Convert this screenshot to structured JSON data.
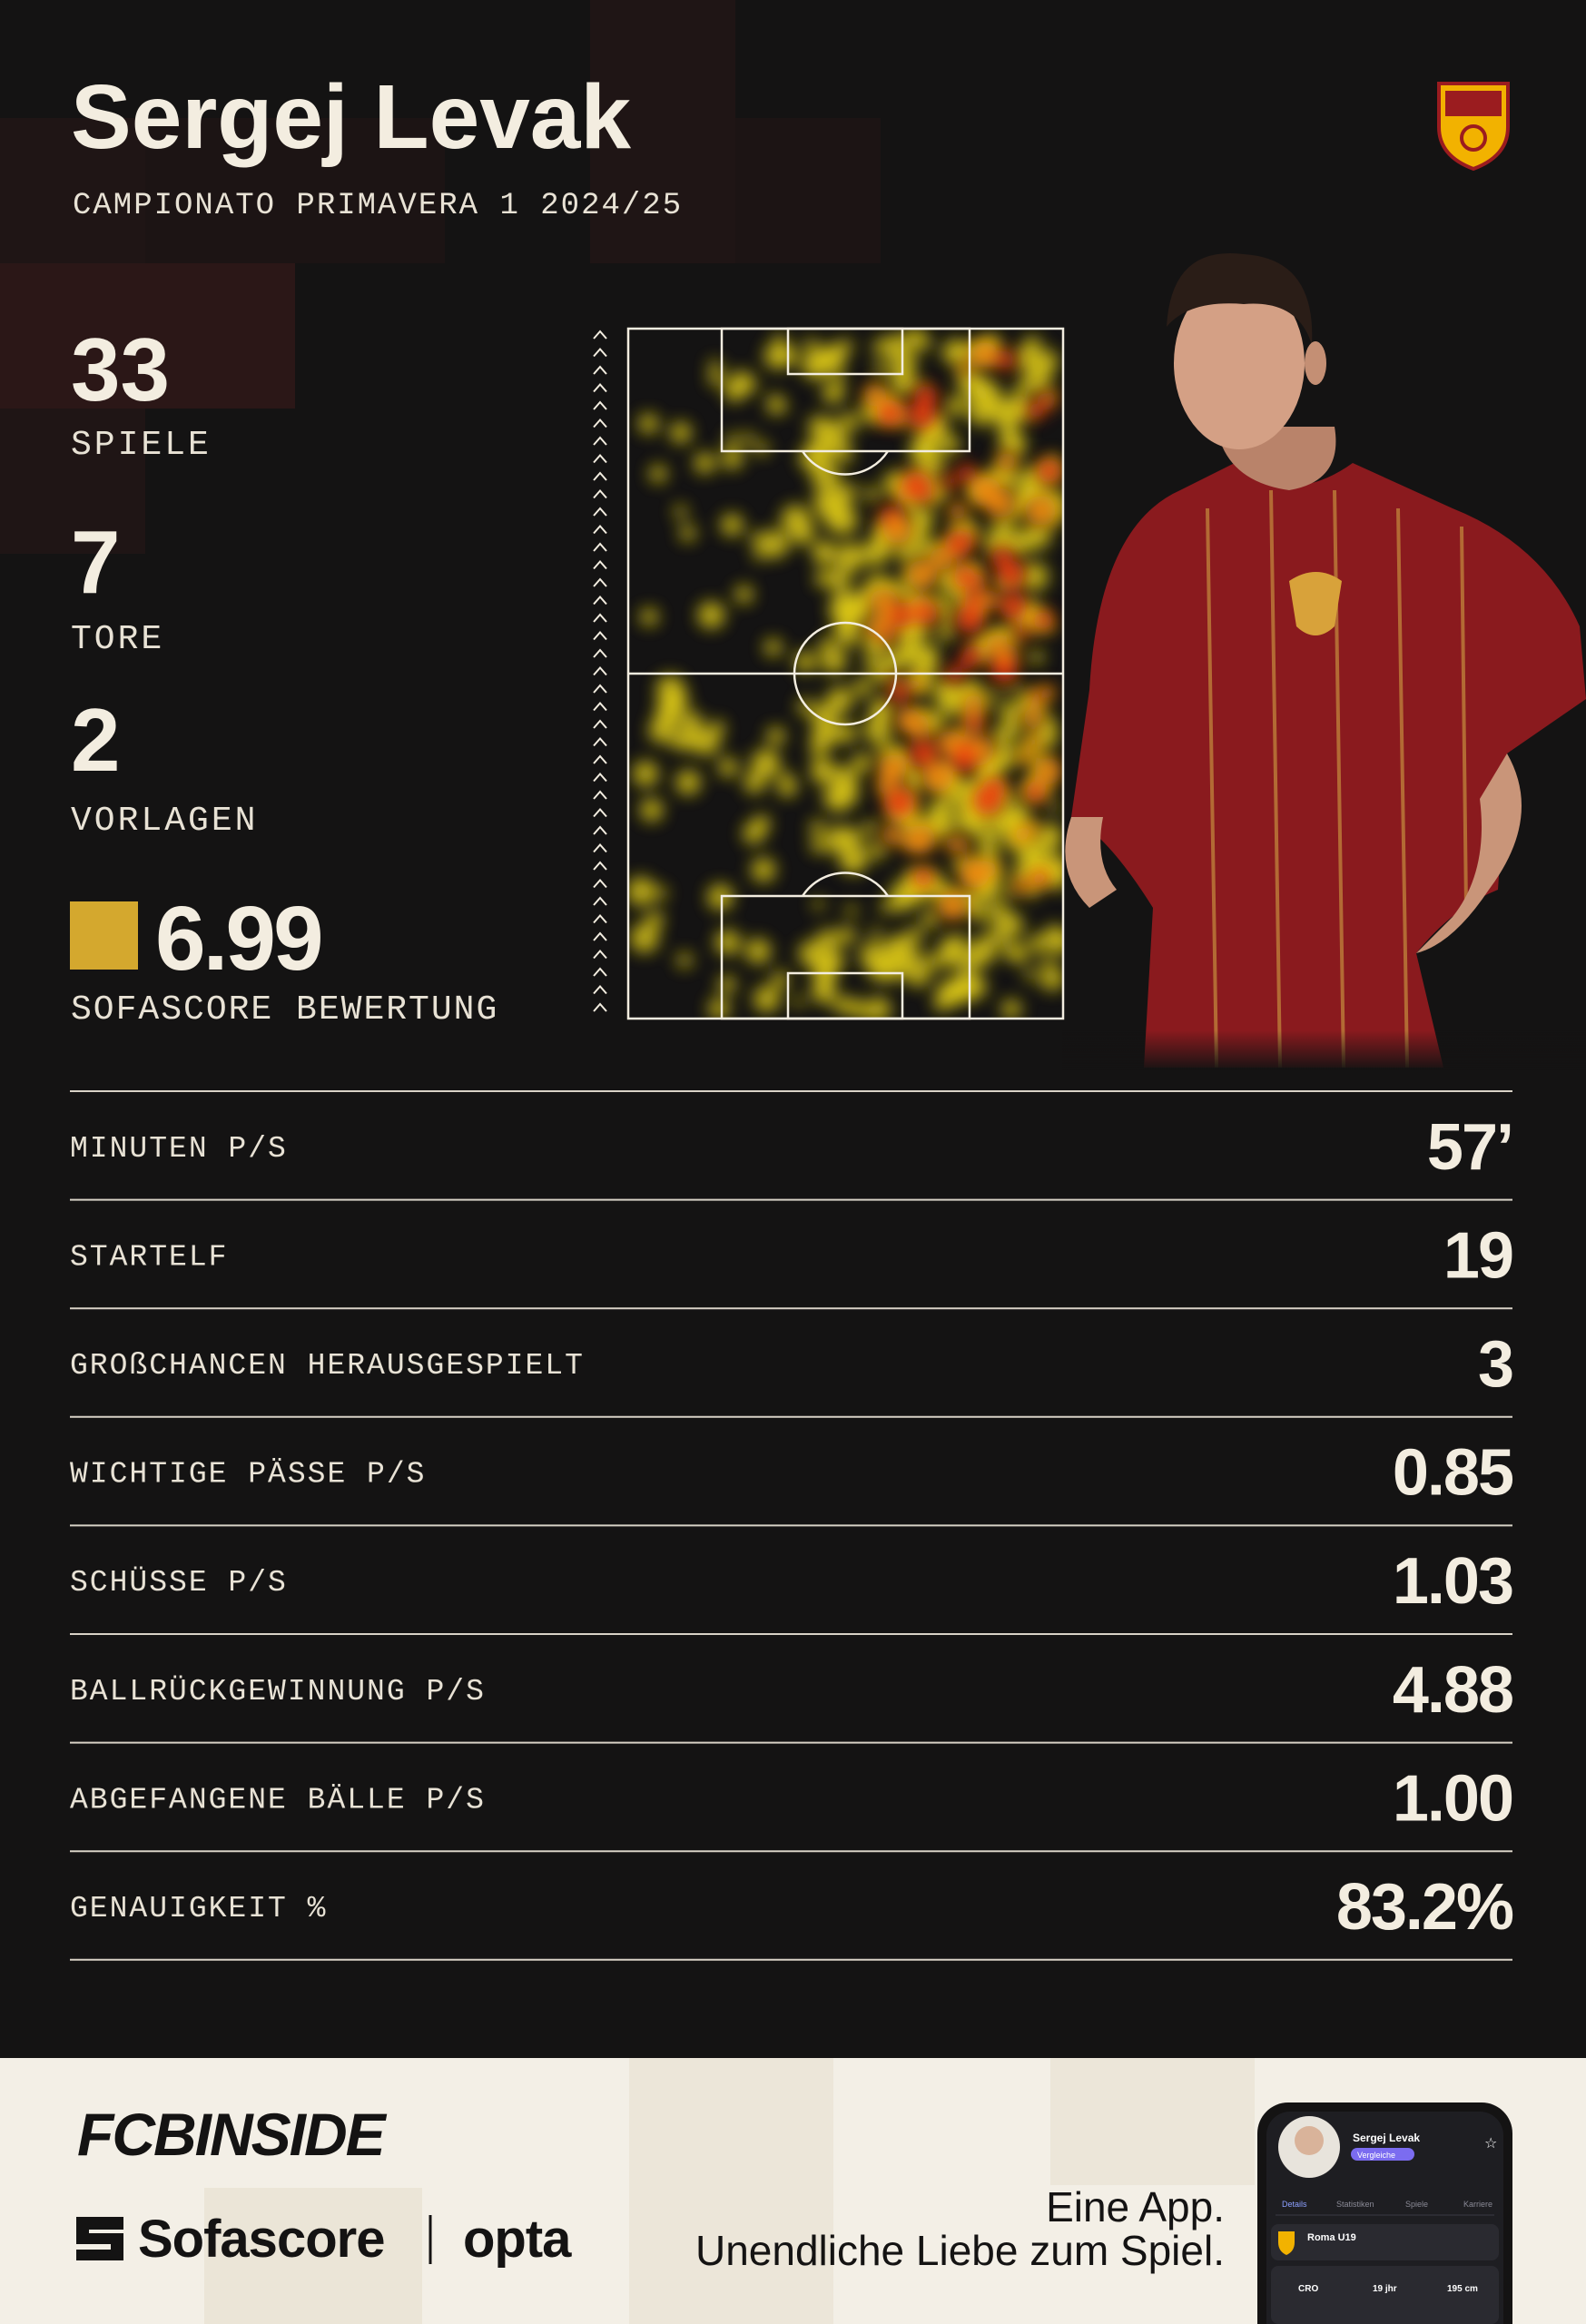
{
  "header": {
    "title": "Sergej Levak",
    "subtitle": "CAMPIONATO PRIMAVERA 1 2024/25"
  },
  "stats": [
    {
      "value": "33",
      "label": "SPIELE"
    },
    {
      "value": "7",
      "label": "TORE"
    },
    {
      "value": "2",
      "label": "VORLAGEN"
    }
  ],
  "rating": {
    "value": "6.99",
    "label": "SOFASCORE BEWERTUNG"
  },
  "table": {
    "rows": [
      [
        "MINUTEN P/S",
        "57’"
      ],
      [
        "STARTELF",
        "19"
      ],
      [
        "GROßCHANCEN HERAUSGESPIELT",
        "3"
      ],
      [
        "WICHTIGE PÄSSE P/S",
        "0.85"
      ],
      [
        "SCHÜSSE P/S",
        "1.03"
      ],
      [
        "BALLRÜCKGEWINNUNG P/S",
        "4.88"
      ],
      [
        "ABGEFANGENE BÄLLE P/S",
        "1.00"
      ],
      [
        "GENAUIGKEIT %",
        "83.2%"
      ]
    ]
  },
  "footer": {
    "brand": "FCBINSIDE",
    "partner": "Sofascore",
    "partner2": "opta",
    "tagline": [
      "Eine App.",
      "Unendliche Liebe zum Spiel."
    ]
  },
  "phone": {
    "name": "Sergej Levak",
    "button": "Vergleiche",
    "tabs": [
      "Details",
      "Statistiken",
      "Spiele",
      "Karriere"
    ],
    "team": "Roma U19",
    "facts": [
      "CRO",
      "19 jhr",
      "195 cm"
    ]
  }
}
